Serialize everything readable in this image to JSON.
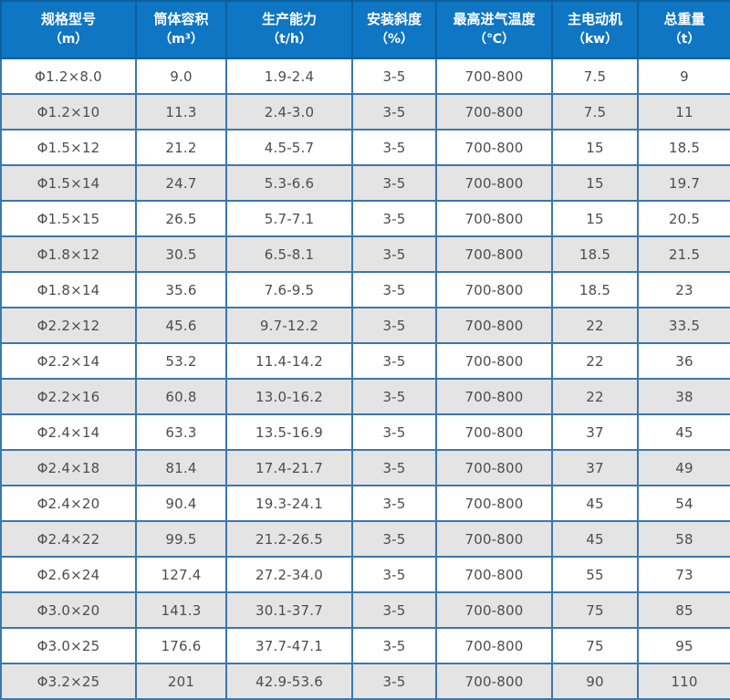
{
  "table": {
    "columns": [
      {
        "label": "规格型号",
        "unit": "（m）"
      },
      {
        "label": "筒体容积",
        "unit": "（m³）"
      },
      {
        "label": "生产能力",
        "unit": "（t/h）"
      },
      {
        "label": "安装斜度",
        "unit": "（%）"
      },
      {
        "label": "最高进气温度",
        "unit": "（℃）"
      },
      {
        "label": "主电动机",
        "unit": "（kw）"
      },
      {
        "label": "总重量",
        "unit": "（t）"
      }
    ]
  },
  "chart_data": {
    "type": "table",
    "columns": [
      "规格型号（m）",
      "筒体容积（m³）",
      "生产能力（t/h）",
      "安装斜度（%）",
      "最高进气温度（℃）",
      "主电动机（kw）",
      "总重量（t）"
    ],
    "rows": [
      [
        "Φ1.2×8.0",
        "9.0",
        "1.9-2.4",
        "3-5",
        "700-800",
        "7.5",
        "9"
      ],
      [
        "Φ1.2×10",
        "11.3",
        "2.4-3.0",
        "3-5",
        "700-800",
        "7.5",
        "11"
      ],
      [
        "Φ1.5×12",
        "21.2",
        "4.5-5.7",
        "3-5",
        "700-800",
        "15",
        "18.5"
      ],
      [
        "Φ1.5×14",
        "24.7",
        "5.3-6.6",
        "3-5",
        "700-800",
        "15",
        "19.7"
      ],
      [
        "Φ1.5×15",
        "26.5",
        "5.7-7.1",
        "3-5",
        "700-800",
        "15",
        "20.5"
      ],
      [
        "Φ1.8×12",
        "30.5",
        "6.5-8.1",
        "3-5",
        "700-800",
        "18.5",
        "21.5"
      ],
      [
        "Φ1.8×14",
        "35.6",
        "7.6-9.5",
        "3-5",
        "700-800",
        "18.5",
        "23"
      ],
      [
        "Φ2.2×12",
        "45.6",
        "9.7-12.2",
        "3-5",
        "700-800",
        "22",
        "33.5"
      ],
      [
        "Φ2.2×14",
        "53.2",
        "11.4-14.2",
        "3-5",
        "700-800",
        "22",
        "36"
      ],
      [
        "Φ2.2×16",
        "60.8",
        "13.0-16.2",
        "3-5",
        "700-800",
        "22",
        "38"
      ],
      [
        "Φ2.4×14",
        "63.3",
        "13.5-16.9",
        "3-5",
        "700-800",
        "37",
        "45"
      ],
      [
        "Φ2.4×18",
        "81.4",
        "17.4-21.7",
        "3-5",
        "700-800",
        "37",
        "49"
      ],
      [
        "Φ2.4×20",
        "90.4",
        "19.3-24.1",
        "3-5",
        "700-800",
        "45",
        "54"
      ],
      [
        "Φ2.4×22",
        "99.5",
        "21.2-26.5",
        "3-5",
        "700-800",
        "45",
        "58"
      ],
      [
        "Φ2.6×24",
        "127.4",
        "27.2-34.0",
        "3-5",
        "700-800",
        "55",
        "73"
      ],
      [
        "Φ3.0×20",
        "141.3",
        "30.1-37.7",
        "3-5",
        "700-800",
        "75",
        "85"
      ],
      [
        "Φ3.0×25",
        "176.6",
        "37.7-47.1",
        "3-5",
        "700-800",
        "75",
        "95"
      ],
      [
        "Φ3.2×25",
        "201",
        "42.9-53.6",
        "3-5",
        "700-800",
        "90",
        "110"
      ]
    ],
    "layout_hints": {
      "grid": true,
      "header_position": "top",
      "row_striping": "white/gray alternating"
    }
  },
  "colors": {
    "header_bg": "#0e76c2",
    "header_border": "#0b5fa0",
    "header_text": "#ffffff",
    "grid_border": "#3b77ac",
    "row_white": "#ffffff",
    "row_gray": "#e4e4e4",
    "cell_text": "#4d4d4d",
    "page_bg": "#dce8f4"
  }
}
